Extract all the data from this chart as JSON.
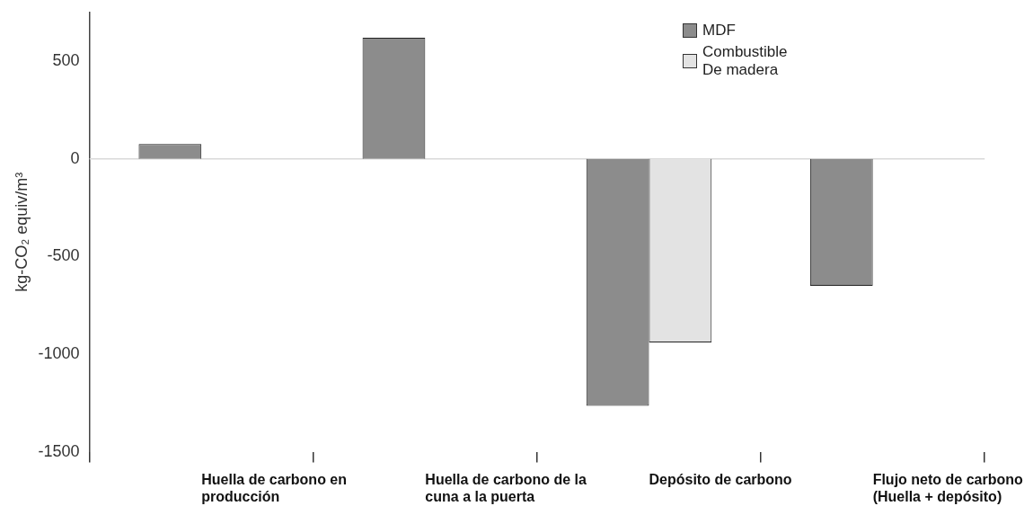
{
  "chart_data": {
    "type": "bar",
    "ylabel": "kg-CO₂ equiv/m³",
    "categories": [
      "Huella de carbono en producción",
      "Huella de carbono de la cuna a la puerta",
      "Depósito de carbono",
      "Flujo neto de carbono (Huella + depósito)"
    ],
    "series": [
      {
        "name": "MDF",
        "color": "#8c8c8c",
        "values": [
          76,
          620,
          -1265,
          -650
        ]
      },
      {
        "name": "Combustible De madera",
        "color": "#e3e3e3",
        "values": [
          null,
          null,
          -940,
          null
        ]
      }
    ],
    "ylim": [
      -1500,
      750
    ],
    "yticks": [
      -1500,
      -1000,
      -500,
      0,
      500
    ],
    "ref_lines": [
      {
        "axis": "y",
        "value": 0,
        "color": "#d9d9d9"
      }
    ],
    "grid": false,
    "legend": "top right"
  }
}
